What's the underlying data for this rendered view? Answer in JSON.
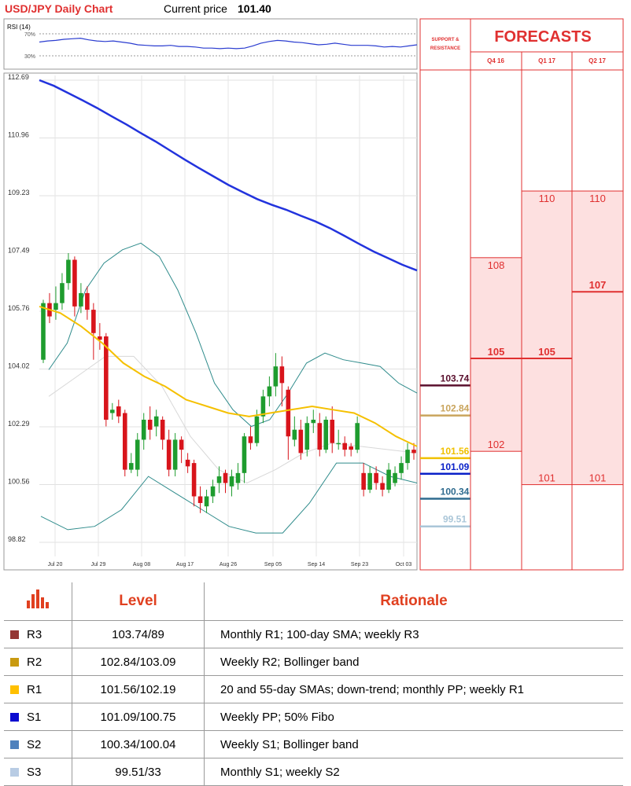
{
  "header": {
    "title": "USD/JPY Daily Chart",
    "price_label": "Current price",
    "price_value": "101.40"
  },
  "rsi": {
    "label": "RSI (14)",
    "upper": "70%",
    "lower": "30%",
    "values": [
      55,
      57,
      58,
      60,
      61,
      62,
      59,
      57,
      56,
      57,
      55,
      53,
      50,
      49,
      48,
      48,
      49,
      47,
      47,
      46,
      44,
      44,
      43,
      44,
      43,
      44,
      48,
      53,
      56,
      58,
      57,
      55,
      54,
      52,
      50,
      51,
      53,
      51,
      49,
      49,
      49,
      48,
      46,
      47,
      46,
      48,
      50
    ]
  },
  "chart_data": {
    "type": "candlestick",
    "title": "USD/JPY Daily Chart",
    "y_ticks": [
      "112.69",
      "110.96",
      "109.23",
      "107.49",
      "105.76",
      "104.02",
      "102.29",
      "100.56",
      "98.82"
    ],
    "y_range": [
      98.82,
      112.69
    ],
    "x_labels": [
      "Jul 20",
      "Jul 29",
      "Aug 08",
      "Aug 17",
      "Aug 26",
      "Sep 05",
      "Sep 14",
      "Sep 23",
      "Oct 03"
    ],
    "candles": [
      [
        104.3,
        106.0,
        104.2,
        106.1
      ],
      [
        106.0,
        105.6,
        105.4,
        106.3
      ],
      [
        105.8,
        106.0,
        105.5,
        106.5
      ],
      [
        106.0,
        106.6,
        105.8,
        106.9
      ],
      [
        106.6,
        107.3,
        106.4,
        107.5
      ],
      [
        107.3,
        105.9,
        105.6,
        107.4
      ],
      [
        105.9,
        106.3,
        105.7,
        106.6
      ],
      [
        106.3,
        105.8,
        105.5,
        106.5
      ],
      [
        105.8,
        105.1,
        104.3,
        106.0
      ],
      [
        105.0,
        104.9,
        104.6,
        105.4
      ],
      [
        105.0,
        102.5,
        102.3,
        105.1
      ],
      [
        102.7,
        102.8,
        102.5,
        103.0
      ],
      [
        102.9,
        102.6,
        102.4,
        103.1
      ],
      [
        102.7,
        101.0,
        100.8,
        102.8
      ],
      [
        101.0,
        101.2,
        100.9,
        101.5
      ],
      [
        101.0,
        101.9,
        100.8,
        102.1
      ],
      [
        101.9,
        102.5,
        101.6,
        102.7
      ],
      [
        102.5,
        102.2,
        101.9,
        102.9
      ],
      [
        102.3,
        102.6,
        102.0,
        102.8
      ],
      [
        102.5,
        101.9,
        101.6,
        102.6
      ],
      [
        101.9,
        101.0,
        100.8,
        102.2
      ],
      [
        101.0,
        101.9,
        100.8,
        102.1
      ],
      [
        101.9,
        101.6,
        101.2,
        102.0
      ],
      [
        101.3,
        101.1,
        100.9,
        101.5
      ],
      [
        101.2,
        100.2,
        99.9,
        101.3
      ],
      [
        100.2,
        100.0,
        99.7,
        100.5
      ],
      [
        99.9,
        100.2,
        99.7,
        100.4
      ],
      [
        100.2,
        100.5,
        100.0,
        100.7
      ],
      [
        100.6,
        100.8,
        100.3,
        101.1
      ],
      [
        100.9,
        100.6,
        100.3,
        101.0
      ],
      [
        100.5,
        100.8,
        100.2,
        101.0
      ],
      [
        100.6,
        100.9,
        100.4,
        101.2
      ],
      [
        100.9,
        102.0,
        100.6,
        102.1
      ],
      [
        102.0,
        101.8,
        101.6,
        102.3
      ],
      [
        101.8,
        102.6,
        101.7,
        102.8
      ],
      [
        102.6,
        103.2,
        102.4,
        103.4
      ],
      [
        103.2,
        103.5,
        102.9,
        103.8
      ],
      [
        103.5,
        104.1,
        103.2,
        104.5
      ],
      [
        104.1,
        103.6,
        102.9,
        104.4
      ],
      [
        103.4,
        102.0,
        101.3,
        103.5
      ],
      [
        101.9,
        102.2,
        101.7,
        102.6
      ],
      [
        102.2,
        101.5,
        101.3,
        102.5
      ],
      [
        101.6,
        102.4,
        101.4,
        102.6
      ],
      [
        102.4,
        102.5,
        102.1,
        102.8
      ],
      [
        102.4,
        101.6,
        101.4,
        102.7
      ],
      [
        101.6,
        102.5,
        101.5,
        102.6
      ],
      [
        102.5,
        101.8,
        101.5,
        102.9
      ],
      [
        101.8,
        101.8,
        101.6,
        102.2
      ],
      [
        101.8,
        101.6,
        101.4,
        102.0
      ],
      [
        101.7,
        101.6,
        101.4,
        101.8
      ],
      [
        101.6,
        102.4,
        101.5,
        102.6
      ],
      [
        100.9,
        100.4,
        100.2,
        101.2
      ],
      [
        100.4,
        100.9,
        100.3,
        101.1
      ],
      [
        100.9,
        100.6,
        100.4,
        101.1
      ],
      [
        100.6,
        100.4,
        100.2,
        100.8
      ],
      [
        100.4,
        101.0,
        100.3,
        101.2
      ],
      [
        100.6,
        100.9,
        100.5,
        101.1
      ],
      [
        100.9,
        101.2,
        100.7,
        101.4
      ],
      [
        101.2,
        101.6,
        101.0,
        101.8
      ],
      [
        101.6,
        101.5,
        101.3,
        101.8
      ]
    ],
    "sma_200": [
      112.69,
      112.52,
      112.3,
      112.08,
      111.85,
      111.6,
      111.36,
      111.1,
      110.85,
      110.58,
      110.31,
      110.05,
      109.8,
      109.55,
      109.33,
      109.12,
      108.95,
      108.8,
      108.62,
      108.45,
      108.25,
      108.02,
      107.78,
      107.55,
      107.35,
      107.15,
      106.98
    ],
    "sma_slow": [
      105.9,
      105.7,
      105.3,
      104.8,
      104.2,
      103.8,
      103.5,
      103.1,
      102.9,
      102.7,
      102.6,
      102.7,
      102.8,
      102.9,
      102.8,
      102.7,
      102.4,
      102.0,
      101.7
    ],
    "boll_upper": [
      104.0,
      104.8,
      106.4,
      107.2,
      107.6,
      107.8,
      107.4,
      106.4,
      105.1,
      103.6,
      102.8,
      102.3,
      102.5,
      103.3,
      104.2,
      104.5,
      104.3,
      104.2,
      104.1,
      103.6,
      103.3
    ],
    "boll_lower": [
      99.6,
      99.2,
      99.3,
      99.8,
      100.8,
      100.3,
      99.8,
      99.3,
      99.1,
      99.1,
      100.0,
      101.2,
      101.2,
      100.8,
      100.6
    ],
    "boll_mid": [
      103.2,
      103.8,
      104.4,
      104.4,
      103.5,
      102.0,
      101.0,
      100.6,
      101.0,
      101.5,
      101.8,
      101.7,
      101.6,
      101.5
    ],
    "levels_on_chart": [
      {
        "value": "103.74",
        "color": "#5a0f2d"
      },
      {
        "value": "102.84",
        "color": "#c9a45c"
      },
      {
        "value": "101.56",
        "color": "#f0c000"
      },
      {
        "value": "101.09",
        "color": "#0a20c8"
      },
      {
        "value": "100.34",
        "color": "#2f6b8f"
      },
      {
        "value": "99.51",
        "color": "#aac6d8"
      }
    ],
    "support_resistance_label": "SUPPORT & RESISTANCE",
    "forecasts": {
      "title": "FORECASTS",
      "columns": [
        "Q4 16",
        "Q1 17",
        "Q2 17"
      ],
      "ranges": [
        {
          "quarter": "Q4 16",
          "high": "108",
          "mid": "105",
          "low": "102"
        },
        {
          "quarter": "Q1 17",
          "high": "110",
          "mid": "105",
          "low": "101"
        },
        {
          "quarter": "Q2 17",
          "high": "110",
          "mid": "107",
          "low": "101"
        }
      ]
    }
  },
  "table": {
    "headers": [
      "Level",
      "Rationale"
    ],
    "rows": [
      {
        "name": "R3",
        "color": "#943634",
        "level": "103.74/89",
        "rationale": "Monthly R1; 100-day SMA; weekly R3"
      },
      {
        "name": "R2",
        "color": "#c99a10",
        "level": "102.84/103.09",
        "rationale": "Weekly R2; Bollinger band"
      },
      {
        "name": "R1",
        "color": "#ffc000",
        "level": "101.56/102.19",
        "rationale": "20 and 55-day SMAs; down-trend; monthly PP; weekly R1"
      },
      {
        "name": "S1",
        "color": "#0a0ad0",
        "level": "101.09/100.75",
        "rationale": "Weekly PP; 50% Fibo"
      },
      {
        "name": "S2",
        "color": "#4f81bd",
        "level": "100.34/100.04",
        "rationale": "Weekly S1; Bollinger band"
      },
      {
        "name": "S3",
        "color": "#b8cce4",
        "level": "99.51/33",
        "rationale": "Monthly S1; weekly S2"
      }
    ]
  }
}
